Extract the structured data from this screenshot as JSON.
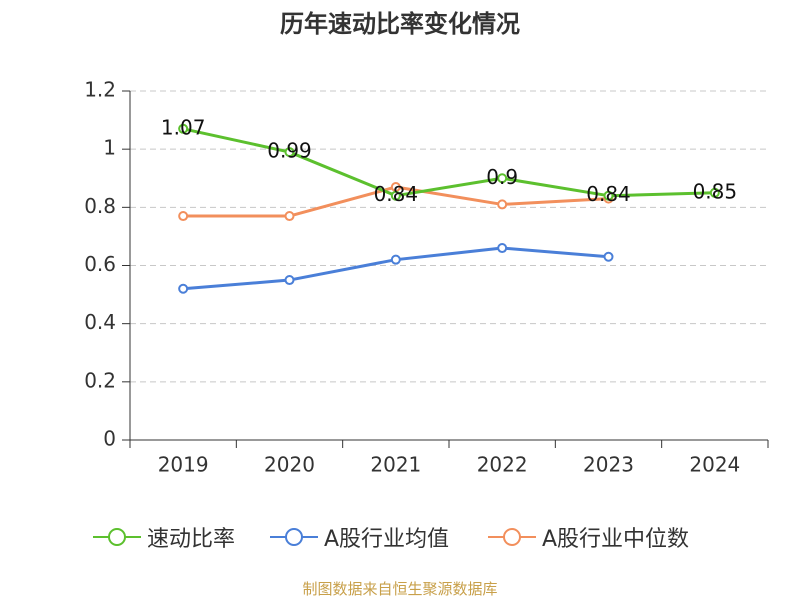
{
  "title": "历年速动比率变化情况",
  "source": "制图数据来自恒生聚源数据库",
  "chart_data": {
    "type": "line",
    "title": "历年速动比率变化情况",
    "categories": [
      "2019",
      "2020",
      "2021",
      "2022",
      "2023",
      "2024"
    ],
    "ylim": [
      0,
      1.2
    ],
    "yticks": [
      "0",
      "0.2",
      "0.4",
      "0.6",
      "0.8",
      "1",
      "1.2"
    ],
    "grid": true,
    "legend_position": "bottom",
    "series": [
      {
        "name": "速动比率",
        "color": "#5cc02e",
        "values": [
          1.07,
          0.99,
          0.84,
          0.9,
          0.84,
          0.85
        ],
        "labels": [
          "1.07",
          "0.99",
          "0.84",
          "0.9",
          "0.84",
          "0.85"
        ]
      },
      {
        "name": "A股行业均值",
        "color": "#4a7fd8",
        "values": [
          0.52,
          0.55,
          0.62,
          0.66,
          0.63,
          null
        ]
      },
      {
        "name": "A股行业中位数",
        "color": "#f28f5c",
        "values": [
          0.77,
          0.77,
          0.87,
          0.81,
          0.83,
          null
        ]
      }
    ]
  }
}
